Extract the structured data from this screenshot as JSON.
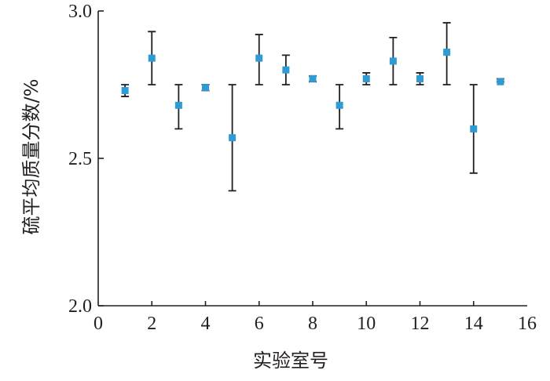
{
  "chart_data": {
    "type": "scatter",
    "title": "",
    "xlabel": "实验室号",
    "ylabel": "硫平均质量分数/%",
    "xlim": [
      0,
      16
    ],
    "ylim": [
      2.0,
      3.0
    ],
    "x_ticks": [
      0,
      2,
      4,
      6,
      8,
      10,
      12,
      14,
      16
    ],
    "y_ticks": [
      "2.0",
      "2.5",
      "3.0"
    ],
    "grid": false,
    "legend": "none",
    "marker_color": "#2e9bd2",
    "error_bar_color": "#231f20",
    "series": [
      {
        "x": [
          1,
          2,
          3,
          4,
          5,
          6,
          7,
          8,
          9,
          10,
          11,
          12,
          13,
          14,
          15
        ],
        "y": [
          2.73,
          2.84,
          2.68,
          2.74,
          2.57,
          2.84,
          2.8,
          2.77,
          2.68,
          2.77,
          2.83,
          2.77,
          2.86,
          2.6,
          2.76
        ],
        "y_low": [
          2.71,
          2.75,
          2.6,
          2.73,
          2.39,
          2.75,
          2.75,
          2.76,
          2.6,
          2.75,
          2.75,
          2.75,
          2.75,
          2.45,
          2.76
        ],
        "y_high": [
          2.75,
          2.93,
          2.75,
          2.75,
          2.75,
          2.92,
          2.85,
          2.78,
          2.75,
          2.79,
          2.91,
          2.79,
          2.96,
          2.75,
          2.77
        ]
      }
    ]
  }
}
